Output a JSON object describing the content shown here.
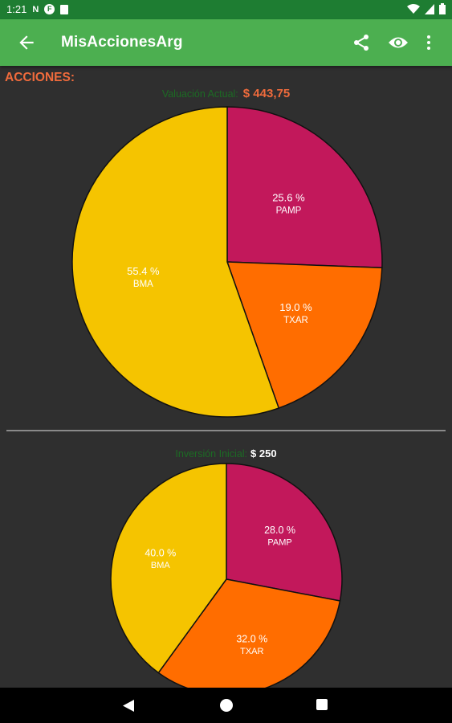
{
  "status_bar": {
    "time": "1:21",
    "notif1": "N",
    "notif2": "F"
  },
  "app_bar": {
    "title": "MisAccionesArg"
  },
  "section_title": "ACCIONES:",
  "chart1": {
    "caption_label": "Valuación Actual:",
    "caption_value": "$ 443,75",
    "slices": [
      {
        "name": "PAMP",
        "percent_label": "25.6 %",
        "value": 25.6,
        "color": "#c2185b"
      },
      {
        "name": "TXAR",
        "percent_label": "19.0 %",
        "value": 19.0,
        "color": "#ff6d00"
      },
      {
        "name": "BMA",
        "percent_label": "55.4 %",
        "value": 55.4,
        "color": "#f5c400"
      }
    ]
  },
  "chart2": {
    "caption_label": "Inversión Inicial:",
    "caption_value": "$ 250",
    "slices": [
      {
        "name": "PAMP",
        "percent_label": "28.0 %",
        "value": 28.0,
        "color": "#c2185b"
      },
      {
        "name": "TXAR",
        "percent_label": "32.0 %",
        "value": 32.0,
        "color": "#ff6d00"
      },
      {
        "name": "BMA",
        "percent_label": "40.0 %",
        "value": 40.0,
        "color": "#f5c400"
      }
    ]
  },
  "chart_data": [
    {
      "type": "pie",
      "title": "Valuación Actual: $ 443,75",
      "categories": [
        "PAMP",
        "TXAR",
        "BMA"
      ],
      "values": [
        25.6,
        19.0,
        55.4
      ]
    },
    {
      "type": "pie",
      "title": "Inversión Inicial: $ 250",
      "categories": [
        "PAMP",
        "TXAR",
        "BMA"
      ],
      "values": [
        28.0,
        32.0,
        40.0
      ]
    }
  ]
}
